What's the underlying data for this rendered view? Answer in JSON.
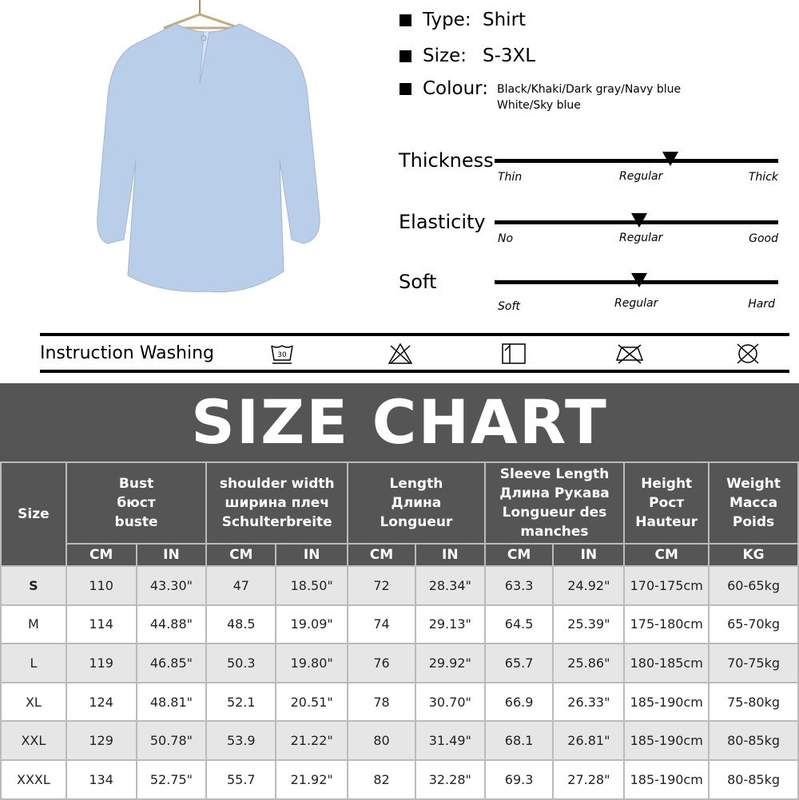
{
  "specs": {
    "type_label": "Type:",
    "type_value": "Shirt",
    "size_label": "Size:",
    "size_value": "S-3XL",
    "colour_label": "Colour:",
    "colour_line1": "Black/Khaki/Dark gray/Navy blue",
    "colour_line2": "White/Sky blue"
  },
  "scales": [
    {
      "label": "Thickness",
      "min": "Thin",
      "mid": "Regular",
      "max": "Thick",
      "level": 0.62
    },
    {
      "label": "Elasticity",
      "min": "No",
      "mid": "Regular",
      "max": "Good",
      "level": 0.51
    },
    {
      "label": "Soft",
      "min": "Soft",
      "mid": "Regular",
      "max": "Hard",
      "level": 0.51
    }
  ],
  "washing": {
    "label": "Instruction Washing",
    "icons": [
      "wash-30-icon",
      "do-not-bleach-icon",
      "dry-flat-icon",
      "do-not-iron-icon",
      "do-not-dry-clean-icon"
    ],
    "wash_temp": "30"
  },
  "size_chart": {
    "title": "SIZE CHART",
    "size_header": "Size",
    "groups": [
      {
        "lines": [
          "Bust",
          "бюст",
          "buste"
        ]
      },
      {
        "lines": [
          "shoulder width",
          "ширина плеч",
          "Schulterbreite"
        ]
      },
      {
        "lines": [
          "Length",
          "Длина",
          "Longueur"
        ]
      },
      {
        "lines": [
          "Sleeve Length",
          "Длина Рукава",
          "Longueur des",
          "manches"
        ]
      },
      {
        "lines": [
          "Height",
          "Рост",
          "Hauteur"
        ]
      },
      {
        "lines": [
          "Weight",
          "Macca",
          "Poids"
        ]
      }
    ],
    "units": [
      "CM",
      "IN",
      "CM",
      "IN",
      "CM",
      "IN",
      "CM",
      "IN",
      "CM",
      "KG"
    ],
    "rows": [
      [
        "S",
        "110",
        "43.30\"",
        "47",
        "18.50\"",
        "72",
        "28.34\"",
        "63.3",
        "24.92\"",
        "170-175cm",
        "60-65kg"
      ],
      [
        "M",
        "114",
        "44.88\"",
        "48.5",
        "19.09\"",
        "74",
        "29.13\"",
        "64.5",
        "25.39\"",
        "175-180cm",
        "65-70kg"
      ],
      [
        "L",
        "119",
        "46.85\"",
        "50.3",
        "19.80\"",
        "76",
        "29.92\"",
        "65.7",
        "25.86\"",
        "180-185cm",
        "70-75kg"
      ],
      [
        "XL",
        "124",
        "48.81\"",
        "52.1",
        "20.51\"",
        "78",
        "30.70\"",
        "66.9",
        "26.33\"",
        "185-190cm",
        "75-80kg"
      ],
      [
        "XXL",
        "129",
        "50.78\"",
        "53.9",
        "21.22\"",
        "80",
        "31.49\"",
        "68.1",
        "26.81\"",
        "185-190cm",
        "80-85kg"
      ],
      [
        "XXXL",
        "134",
        "52.75\"",
        "55.7",
        "21.92\"",
        "82",
        "32.28\"",
        "69.3",
        "27.28\"",
        "185-190cm",
        "80-85kg"
      ]
    ]
  },
  "colors": {
    "shirt": "#b9cfe9",
    "header_bg": "#555555",
    "row_alt": "#e6e6e6"
  }
}
